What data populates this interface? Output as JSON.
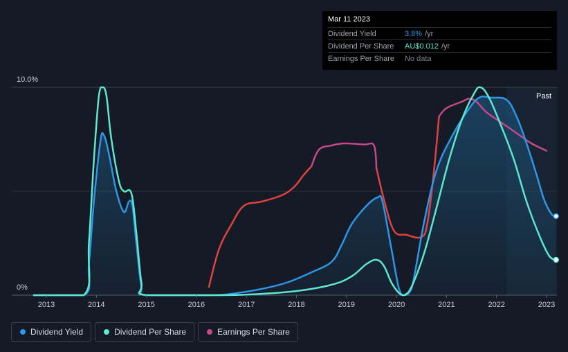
{
  "tooltip": {
    "date": "Mar 11 2023",
    "rows": [
      {
        "label": "Dividend Yield",
        "value": "3.8%",
        "unit": "/yr",
        "color": "#2f95e6"
      },
      {
        "label": "Dividend Per Share",
        "value": "AU$0.012",
        "unit": "/yr",
        "color": "#5ee6cf"
      },
      {
        "label": "Earnings Per Share",
        "value": "No data",
        "unit": "",
        "color": "#7c8088"
      }
    ]
  },
  "legend": [
    {
      "label": "Dividend Yield",
      "color": "#2f95e6"
    },
    {
      "label": "Dividend Per Share",
      "color": "#5ee6cf"
    },
    {
      "label": "Earnings Per Share",
      "color": "#c9468b"
    }
  ],
  "chart_data": {
    "type": "line",
    "y_top_label": "10.0%",
    "y_bottom_label": "0%",
    "ylim": [
      0,
      10
    ],
    "xlim": [
      2012.75,
      2023.2
    ],
    "x_ticks": [
      "2013",
      "2014",
      "2015",
      "2016",
      "2017",
      "2018",
      "2019",
      "2020",
      "2021",
      "2022",
      "2023"
    ],
    "past_label": "Past",
    "past_start": 2022.2,
    "grid": true,
    "series": [
      {
        "name": "Dividend Yield",
        "color": "#2f95e6",
        "fill": true,
        "points": [
          [
            2012.75,
            0
          ],
          [
            2013.75,
            0
          ],
          [
            2013.85,
            1.5
          ],
          [
            2013.95,
            4.5
          ],
          [
            2014.08,
            7.4
          ],
          [
            2014.15,
            7.7
          ],
          [
            2014.25,
            6.8
          ],
          [
            2014.4,
            5.0
          ],
          [
            2014.55,
            4.0
          ],
          [
            2014.65,
            4.5
          ],
          [
            2014.72,
            4.3
          ],
          [
            2014.8,
            2.5
          ],
          [
            2014.9,
            0.4
          ],
          [
            2015.0,
            0
          ],
          [
            2016.3,
            0
          ],
          [
            2016.8,
            0.1
          ],
          [
            2017.3,
            0.3
          ],
          [
            2017.8,
            0.6
          ],
          [
            2018.3,
            1.1
          ],
          [
            2018.7,
            1.6
          ],
          [
            2018.9,
            2.4
          ],
          [
            2019.1,
            3.4
          ],
          [
            2019.4,
            4.3
          ],
          [
            2019.62,
            4.7
          ],
          [
            2019.72,
            4.5
          ],
          [
            2019.9,
            2.2
          ],
          [
            2020.05,
            0.3
          ],
          [
            2020.15,
            0
          ],
          [
            2020.3,
            0.3
          ],
          [
            2020.55,
            3.5
          ],
          [
            2020.8,
            6.0
          ],
          [
            2021.1,
            7.6
          ],
          [
            2021.4,
            8.8
          ],
          [
            2021.65,
            9.5
          ],
          [
            2021.9,
            9.5
          ],
          [
            2022.2,
            9.4
          ],
          [
            2022.4,
            8.6
          ],
          [
            2022.6,
            7.3
          ],
          [
            2022.8,
            5.8
          ],
          [
            2022.95,
            4.6
          ],
          [
            2023.1,
            3.9
          ],
          [
            2023.19,
            3.8
          ]
        ]
      },
      {
        "name": "Dividend Per Share",
        "color": "#5ee6cf",
        "fill": false,
        "points": [
          [
            2012.75,
            0
          ],
          [
            2013.75,
            0
          ],
          [
            2013.85,
            2.5
          ],
          [
            2013.95,
            6.5
          ],
          [
            2014.05,
            9.6
          ],
          [
            2014.12,
            10.0
          ],
          [
            2014.2,
            9.6
          ],
          [
            2014.3,
            7.5
          ],
          [
            2014.45,
            5.5
          ],
          [
            2014.55,
            5.0
          ],
          [
            2014.7,
            4.9
          ],
          [
            2014.8,
            3.0
          ],
          [
            2014.9,
            0.6
          ],
          [
            2015.0,
            0
          ],
          [
            2016.5,
            0
          ],
          [
            2017.2,
            0.05
          ],
          [
            2018.0,
            0.2
          ],
          [
            2018.7,
            0.5
          ],
          [
            2019.1,
            0.9
          ],
          [
            2019.4,
            1.5
          ],
          [
            2019.6,
            1.7
          ],
          [
            2019.75,
            1.4
          ],
          [
            2019.9,
            0.6
          ],
          [
            2020.05,
            0.1
          ],
          [
            2020.15,
            0
          ],
          [
            2020.3,
            0.4
          ],
          [
            2020.55,
            2.0
          ],
          [
            2020.8,
            4.2
          ],
          [
            2021.05,
            6.5
          ],
          [
            2021.3,
            8.4
          ],
          [
            2021.55,
            9.7
          ],
          [
            2021.68,
            10.0
          ],
          [
            2021.85,
            9.5
          ],
          [
            2022.1,
            8.1
          ],
          [
            2022.35,
            6.5
          ],
          [
            2022.6,
            4.5
          ],
          [
            2022.85,
            2.9
          ],
          [
            2023.05,
            1.9
          ],
          [
            2023.19,
            1.7
          ]
        ]
      },
      {
        "name": "Earnings Per Share",
        "color": "#e2423f",
        "color_late": "#c9468b",
        "fill": false,
        "segments": [
          [
            [
              2016.25,
              0.4
            ],
            [
              2016.45,
              2.2
            ],
            [
              2016.7,
              3.4
            ],
            [
              2016.95,
              4.3
            ],
            [
              2017.3,
              4.5
            ],
            [
              2017.7,
              4.8
            ],
            [
              2017.95,
              5.2
            ],
            [
              2018.15,
              5.8
            ],
            [
              2018.3,
              6.2
            ]
          ],
          [
            [
              2019.6,
              6.1
            ],
            [
              2019.75,
              4.6
            ],
            [
              2019.95,
              3.1
            ],
            [
              2020.2,
              2.9
            ],
            [
              2020.5,
              2.8
            ],
            [
              2020.62,
              3.5
            ],
            [
              2020.75,
              6.0
            ],
            [
              2020.85,
              8.6
            ]
          ],
          [
            [
              2018.3,
              6.2
            ],
            [
              2018.45,
              7.0
            ],
            [
              2018.7,
              7.2
            ],
            [
              2018.95,
              7.3
            ],
            [
              2019.35,
              7.25
            ],
            [
              2019.55,
              7.2
            ],
            [
              2019.6,
              6.1
            ]
          ],
          [
            [
              2020.85,
              8.6
            ],
            [
              2021.0,
              9.0
            ],
            [
              2021.3,
              9.3
            ],
            [
              2021.45,
              9.45
            ],
            [
              2021.6,
              9.3
            ],
            [
              2021.8,
              8.8
            ],
            [
              2022.1,
              8.3
            ],
            [
              2022.4,
              7.8
            ],
            [
              2022.7,
              7.3
            ],
            [
              2023.0,
              6.95
            ]
          ]
        ]
      }
    ],
    "end_markers": [
      {
        "series": "Dividend Yield",
        "x": 2023.19,
        "y": 3.8
      },
      {
        "series": "Dividend Per Share",
        "x": 2023.19,
        "y": 1.7
      }
    ]
  }
}
